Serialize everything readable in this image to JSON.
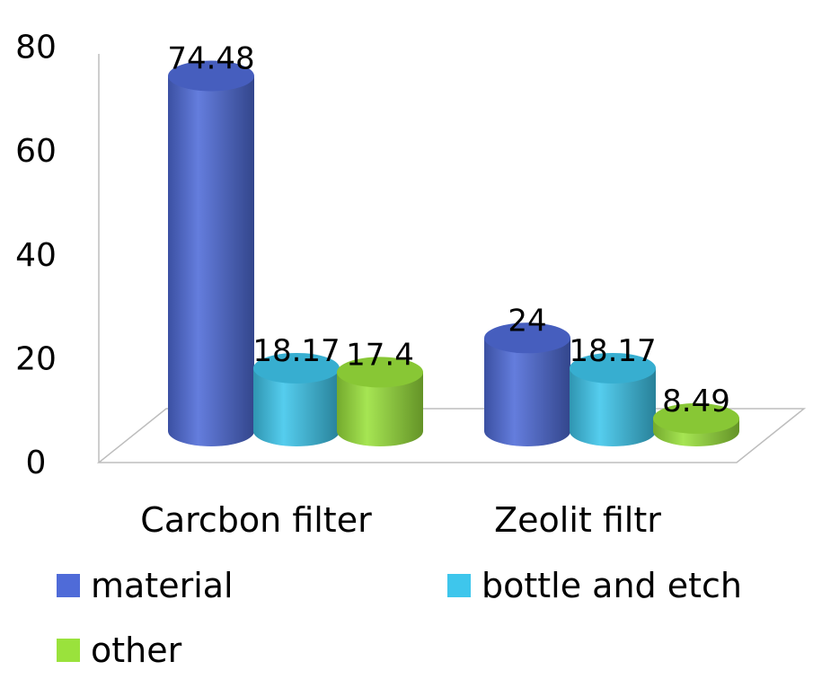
{
  "chart_data": {
    "type": "bar",
    "style": "3d-cylinder",
    "categories": [
      "Carcbon filter",
      "Zeolit filtr"
    ],
    "series": [
      {
        "name": "material",
        "values": [
          74.48,
          24
        ],
        "color": "#4f6bd8"
      },
      {
        "name": "bottle and etch",
        "values": [
          18.17,
          18.17
        ],
        "color": "#3ec6ec"
      },
      {
        "name": "other",
        "values": [
          17.4,
          8.49
        ],
        "color": "#9ae23c"
      }
    ],
    "data_labels": [
      [
        "74.48",
        "24"
      ],
      [
        "18.17",
        "18.17"
      ],
      [
        "17.4",
        "8.49"
      ]
    ],
    "yticks": [
      "0",
      "20",
      "40",
      "60",
      "80"
    ],
    "ylim": [
      0,
      80
    ],
    "grid": false,
    "legend": "bottom",
    "title": "",
    "xlabel": "",
    "ylabel": ""
  }
}
